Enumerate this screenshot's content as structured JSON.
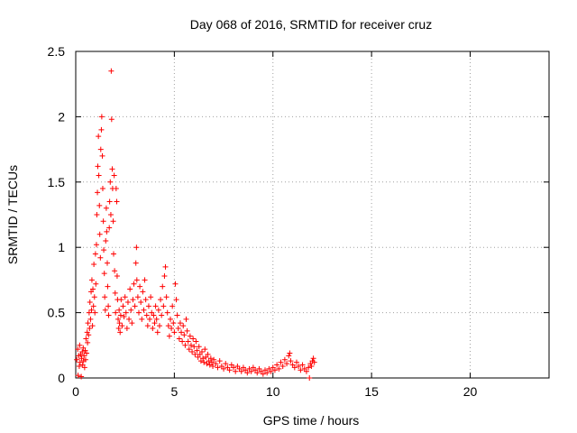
{
  "chart_data": {
    "type": "scatter",
    "title": "Day 068 of 2016, SRMTID for receiver cruz",
    "xlabel": "GPS time / hours",
    "ylabel": "SRMTID / TECUs",
    "xlim": [
      0,
      24
    ],
    "ylim": [
      0,
      2.5
    ],
    "x_ticks": [
      0,
      5,
      10,
      15,
      20
    ],
    "x_tick_labels": [
      "0",
      "5",
      "10",
      "15",
      "20"
    ],
    "y_ticks": [
      0,
      0.5,
      1,
      1.5,
      2,
      2.5
    ],
    "y_tick_labels": [
      "0",
      "0.5",
      "1",
      "1.5",
      "2",
      "2.5"
    ],
    "grid": true,
    "marker": "+",
    "color": "#ff0000",
    "series": [
      {
        "name": "SRMTID",
        "points": [
          [
            0.05,
            0.14
          ],
          [
            0.1,
            0.22
          ],
          [
            0.12,
            0.02
          ],
          [
            0.15,
            0.17
          ],
          [
            0.18,
            0.09
          ],
          [
            0.2,
            0.25
          ],
          [
            0.22,
            0.12
          ],
          [
            0.25,
            0.18
          ],
          [
            0.28,
            0.01
          ],
          [
            0.3,
            0.15
          ],
          [
            0.33,
            0.2
          ],
          [
            0.35,
            0.1
          ],
          [
            0.38,
            0.23
          ],
          [
            0.4,
            0.13
          ],
          [
            0.42,
            0.17
          ],
          [
            0.45,
            0.08
          ],
          [
            0.48,
            0.21
          ],
          [
            0.5,
            0.14
          ],
          [
            0.52,
            0.3
          ],
          [
            0.55,
            0.19
          ],
          [
            0.58,
            0.35
          ],
          [
            0.6,
            0.27
          ],
          [
            0.62,
            0.42
          ],
          [
            0.65,
            0.33
          ],
          [
            0.68,
            0.5
          ],
          [
            0.7,
            0.38
          ],
          [
            0.72,
            0.58
          ],
          [
            0.75,
            0.45
          ],
          [
            0.78,
            0.66
          ],
          [
            0.8,
            0.52
          ],
          [
            0.82,
            0.75
          ],
          [
            0.85,
            0.4
          ],
          [
            0.87,
            0.68
          ],
          [
            0.9,
            0.55
          ],
          [
            0.92,
            0.87
          ],
          [
            0.95,
            0.62
          ],
          [
            0.97,
            0.5
          ],
          [
            1.0,
            0.95
          ],
          [
            1.02,
            0.72
          ],
          [
            1.05,
            1.02
          ],
          [
            1.07,
            1.25
          ],
          [
            1.1,
            1.42
          ],
          [
            1.12,
            1.62
          ],
          [
            1.15,
            1.85
          ],
          [
            1.17,
            1.55
          ],
          [
            1.2,
            1.32
          ],
          [
            1.22,
            1.1
          ],
          [
            1.25,
            0.92
          ],
          [
            1.27,
            1.75
          ],
          [
            1.3,
            1.9
          ],
          [
            1.32,
            2.0
          ],
          [
            1.35,
            1.7
          ],
          [
            1.37,
            1.45
          ],
          [
            1.4,
            1.2
          ],
          [
            1.42,
            0.98
          ],
          [
            1.45,
            0.8
          ],
          [
            1.47,
            0.62
          ],
          [
            1.5,
            0.52
          ],
          [
            1.52,
            1.05
          ],
          [
            1.55,
            1.3
          ],
          [
            1.57,
            1.12
          ],
          [
            1.6,
            0.88
          ],
          [
            1.62,
            0.7
          ],
          [
            1.65,
            0.55
          ],
          [
            1.67,
            0.48
          ],
          [
            1.7,
            1.15
          ],
          [
            1.72,
            1.35
          ],
          [
            1.75,
            1.5
          ],
          [
            1.78,
            1.25
          ],
          [
            1.8,
            2.35
          ],
          [
            1.82,
            1.98
          ],
          [
            1.85,
            1.6
          ],
          [
            1.87,
            1.45
          ],
          [
            1.9,
            1.2
          ],
          [
            1.92,
            0.95
          ],
          [
            1.95,
            1.55
          ],
          [
            1.97,
            0.82
          ],
          [
            2.0,
            0.65
          ],
          [
            2.02,
            0.5
          ],
          [
            2.05,
            1.45
          ],
          [
            2.08,
            1.35
          ],
          [
            2.1,
            0.78
          ],
          [
            2.12,
            0.6
          ],
          [
            2.15,
            0.45
          ],
          [
            2.18,
            0.38
          ],
          [
            2.2,
            0.52
          ],
          [
            2.22,
            0.42
          ],
          [
            2.25,
            0.35
          ],
          [
            2.28,
            0.48
          ],
          [
            2.3,
            0.6
          ],
          [
            2.35,
            0.4
          ],
          [
            2.4,
            0.55
          ],
          [
            2.45,
            0.47
          ],
          [
            2.5,
            0.62
          ],
          [
            2.55,
            0.5
          ],
          [
            2.6,
            0.38
          ],
          [
            2.65,
            0.58
          ],
          [
            2.7,
            0.45
          ],
          [
            2.75,
            0.68
          ],
          [
            2.8,
            0.52
          ],
          [
            2.85,
            0.42
          ],
          [
            2.9,
            0.6
          ],
          [
            2.95,
            0.72
          ],
          [
            3.0,
            0.55
          ],
          [
            3.05,
            0.88
          ],
          [
            3.08,
            1.0
          ],
          [
            3.1,
            0.75
          ],
          [
            3.15,
            0.62
          ],
          [
            3.2,
            0.5
          ],
          [
            3.25,
            0.7
          ],
          [
            3.3,
            0.58
          ],
          [
            3.35,
            0.45
          ],
          [
            3.4,
            0.66
          ],
          [
            3.45,
            0.52
          ],
          [
            3.5,
            0.75
          ],
          [
            3.55,
            0.6
          ],
          [
            3.6,
            0.48
          ],
          [
            3.65,
            0.4
          ],
          [
            3.7,
            0.55
          ],
          [
            3.75,
            0.45
          ],
          [
            3.8,
            0.62
          ],
          [
            3.85,
            0.5
          ],
          [
            3.9,
            0.38
          ],
          [
            3.95,
            0.48
          ],
          [
            4.0,
            0.42
          ],
          [
            4.05,
            0.55
          ],
          [
            4.1,
            0.45
          ],
          [
            4.15,
            0.35
          ],
          [
            4.2,
            0.52
          ],
          [
            4.25,
            0.4
          ],
          [
            4.3,
            0.6
          ],
          [
            4.35,
            0.48
          ],
          [
            4.4,
            0.7
          ],
          [
            4.45,
            0.55
          ],
          [
            4.5,
            0.78
          ],
          [
            4.55,
            0.85
          ],
          [
            4.6,
            0.62
          ],
          [
            4.65,
            0.5
          ],
          [
            4.7,
            0.4
          ],
          [
            4.75,
            0.32
          ],
          [
            4.8,
            0.45
          ],
          [
            4.85,
            0.38
          ],
          [
            4.9,
            0.55
          ],
          [
            4.95,
            0.42
          ],
          [
            5.0,
            0.35
          ],
          [
            5.05,
            0.72
          ],
          [
            5.1,
            0.6
          ],
          [
            5.15,
            0.48
          ],
          [
            5.2,
            0.38
          ],
          [
            5.25,
            0.3
          ],
          [
            5.3,
            0.42
          ],
          [
            5.35,
            0.35
          ],
          [
            5.4,
            0.28
          ],
          [
            5.45,
            0.4
          ],
          [
            5.5,
            0.33
          ],
          [
            5.55,
            0.25
          ],
          [
            5.6,
            0.45
          ],
          [
            5.65,
            0.36
          ],
          [
            5.7,
            0.28
          ],
          [
            5.75,
            0.22
          ],
          [
            5.8,
            0.32
          ],
          [
            5.85,
            0.25
          ],
          [
            5.9,
            0.2
          ],
          [
            5.95,
            0.3
          ],
          [
            6.0,
            0.24
          ],
          [
            6.05,
            0.18
          ],
          [
            6.1,
            0.28
          ],
          [
            6.15,
            0.21
          ],
          [
            6.2,
            0.16
          ],
          [
            6.25,
            0.24
          ],
          [
            6.3,
            0.18
          ],
          [
            6.35,
            0.13
          ],
          [
            6.4,
            0.2
          ],
          [
            6.45,
            0.15
          ],
          [
            6.5,
            0.12
          ],
          [
            6.55,
            0.22
          ],
          [
            6.6,
            0.16
          ],
          [
            6.65,
            0.11
          ],
          [
            6.7,
            0.18
          ],
          [
            6.75,
            0.13
          ],
          [
            6.8,
            0.1
          ],
          [
            6.85,
            0.15
          ],
          [
            6.9,
            0.12
          ],
          [
            6.95,
            0.09
          ],
          [
            7.0,
            0.14
          ],
          [
            7.1,
            0.11
          ],
          [
            7.2,
            0.08
          ],
          [
            7.3,
            0.13
          ],
          [
            7.4,
            0.09
          ],
          [
            7.5,
            0.07
          ],
          [
            7.6,
            0.11
          ],
          [
            7.7,
            0.08
          ],
          [
            7.8,
            0.06
          ],
          [
            7.9,
            0.1
          ],
          [
            8.0,
            0.08
          ],
          [
            8.1,
            0.05
          ],
          [
            8.2,
            0.09
          ],
          [
            8.3,
            0.07
          ],
          [
            8.4,
            0.05
          ],
          [
            8.5,
            0.08
          ],
          [
            8.6,
            0.06
          ],
          [
            8.7,
            0.04
          ],
          [
            8.8,
            0.07
          ],
          [
            8.9,
            0.05
          ],
          [
            9.0,
            0.08
          ],
          [
            9.1,
            0.06
          ],
          [
            9.2,
            0.04
          ],
          [
            9.3,
            0.07
          ],
          [
            9.4,
            0.05
          ],
          [
            9.5,
            0.03
          ],
          [
            9.6,
            0.06
          ],
          [
            9.7,
            0.04
          ],
          [
            9.8,
            0.07
          ],
          [
            9.9,
            0.05
          ],
          [
            10.0,
            0.08
          ],
          [
            10.1,
            0.06
          ],
          [
            10.2,
            0.1
          ],
          [
            10.3,
            0.07
          ],
          [
            10.4,
            0.12
          ],
          [
            10.5,
            0.09
          ],
          [
            10.6,
            0.14
          ],
          [
            10.7,
            0.11
          ],
          [
            10.8,
            0.17
          ],
          [
            10.85,
            0.19
          ],
          [
            10.9,
            0.13
          ],
          [
            11.0,
            0.1
          ],
          [
            11.1,
            0.08
          ],
          [
            11.2,
            0.12
          ],
          [
            11.3,
            0.09
          ],
          [
            11.4,
            0.06
          ],
          [
            11.5,
            0.1
          ],
          [
            11.6,
            0.07
          ],
          [
            11.7,
            0.05
          ],
          [
            11.8,
            0.08
          ],
          [
            11.85,
            0.0
          ],
          [
            11.9,
            0.11
          ],
          [
            11.95,
            0.09
          ],
          [
            12.0,
            0.13
          ],
          [
            12.05,
            0.15
          ],
          [
            12.1,
            0.12
          ]
        ]
      }
    ]
  }
}
